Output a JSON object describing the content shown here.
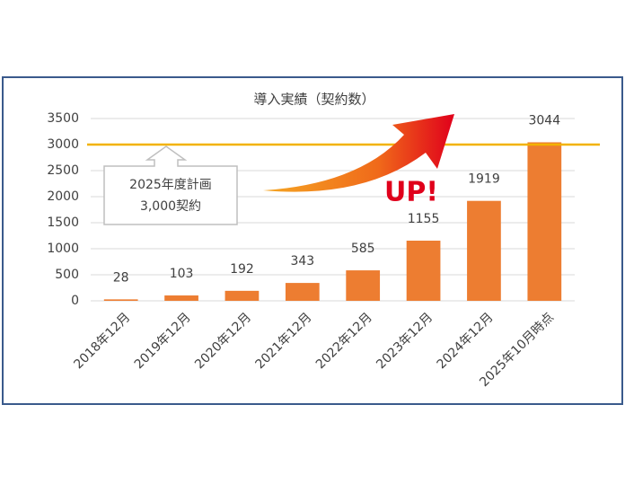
{
  "chart_data": {
    "type": "bar",
    "title": "導入実績（契約数）",
    "categories": [
      "2018年12月",
      "2019年12月",
      "2020年12月",
      "2021年12月",
      "2022年12月",
      "2023年12月",
      "2024年12月",
      "2025年10月時点"
    ],
    "values": [
      28,
      103,
      192,
      343,
      585,
      1155,
      1919,
      3044
    ],
    "color": "#ed7d31",
    "ylim": [
      0,
      3500
    ],
    "yticks": [
      0,
      500,
      1000,
      1500,
      2000,
      2500,
      3000,
      3500
    ],
    "grid": true,
    "target_line": {
      "value": 3000,
      "color": "#f2b200"
    },
    "annotations": [
      "2025年度計画",
      "3,000契約",
      "UP!"
    ]
  }
}
